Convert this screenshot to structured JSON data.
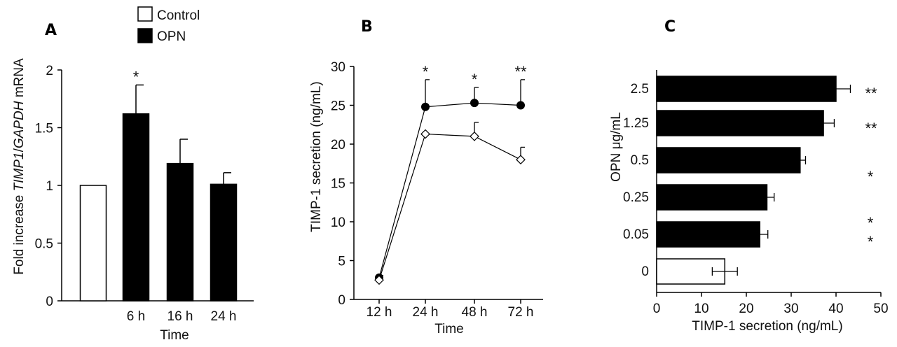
{
  "colors": {
    "label": "#1a66a6",
    "opn": "#000000",
    "control": "#ffffff",
    "axis": "#000000"
  },
  "legend": {
    "control": "Control",
    "opn": "OPN"
  },
  "chart_data": [
    {
      "panel": "A",
      "type": "bar",
      "ylabel_parts": [
        "Fold increase ",
        "TIMP1",
        "/",
        "GAPDH",
        " mRNA"
      ],
      "xlabel": "Time",
      "ylim": [
        0,
        2
      ],
      "yticks": [
        "0",
        "0.5",
        "1",
        "1.5",
        "2"
      ],
      "ytick_values": [
        0,
        0.5,
        1,
        1.5,
        2
      ],
      "categories": [
        "",
        "6 h",
        "16 h",
        "24 h"
      ],
      "series": [
        {
          "name": "Control",
          "values": [
            1.0,
            null,
            null,
            null
          ],
          "errors": [
            0,
            null,
            null,
            null
          ]
        },
        {
          "name": "OPN",
          "values": [
            null,
            1.62,
            1.19,
            1.01
          ],
          "errors": [
            null,
            0.25,
            0.21,
            0.1
          ]
        }
      ],
      "annotations": [
        {
          "category": "6 h",
          "text": "*"
        }
      ]
    },
    {
      "panel": "B",
      "type": "line",
      "ylabel": "TIMP-1 secretion (ng/mL)",
      "xlabel": "Time",
      "ylim": [
        0,
        30
      ],
      "yticks": [
        "0",
        "5",
        "10",
        "15",
        "20",
        "25",
        "30"
      ],
      "ytick_values": [
        0,
        5,
        10,
        15,
        20,
        25,
        30
      ],
      "categories": [
        "12 h",
        "24 h",
        "48 h",
        "72 h"
      ],
      "series": [
        {
          "name": "OPN",
          "values": [
            2.8,
            24.8,
            25.3,
            25.0
          ],
          "errors": [
            0.3,
            3.5,
            2.0,
            3.3
          ]
        },
        {
          "name": "Control",
          "values": [
            2.5,
            21.3,
            21.0,
            18.0
          ],
          "errors": [
            0.3,
            0,
            1.8,
            1.6
          ]
        }
      ],
      "annotations": [
        {
          "category": "24 h",
          "text": "*"
        },
        {
          "category": "48 h",
          "text": "*"
        },
        {
          "category": "72 h",
          "text": "**"
        }
      ]
    },
    {
      "panel": "C",
      "type": "bar",
      "orientation": "horizontal",
      "ylabel_parts": [
        "OPN ",
        "μ",
        "g/mL"
      ],
      "xlabel": "TIMP-1 secretion (ng/mL)",
      "xlim": [
        0,
        50
      ],
      "xticks": [
        "0",
        "10",
        "20",
        "30",
        "40",
        "50"
      ],
      "xtick_values": [
        0,
        10,
        20,
        30,
        40,
        50
      ],
      "categories": [
        "2.5",
        "1.25",
        "0.5",
        "0.25",
        "0.05",
        "0"
      ],
      "values": [
        40.0,
        37.2,
        32.0,
        24.6,
        23.0,
        15.2
      ],
      "errors": [
        3.2,
        2.4,
        1.2,
        1.6,
        1.8,
        2.8
      ],
      "fills": [
        "opn",
        "opn",
        "opn",
        "opn",
        "opn",
        "control"
      ],
      "annotations": [
        {
          "category": "2.5",
          "text": "**"
        },
        {
          "category": "1.25",
          "text": "**"
        },
        {
          "category": "0.5",
          "text": "*"
        },
        {
          "category": "0.25",
          "text": "*"
        },
        {
          "category": "0.05",
          "text": "*"
        }
      ]
    }
  ]
}
